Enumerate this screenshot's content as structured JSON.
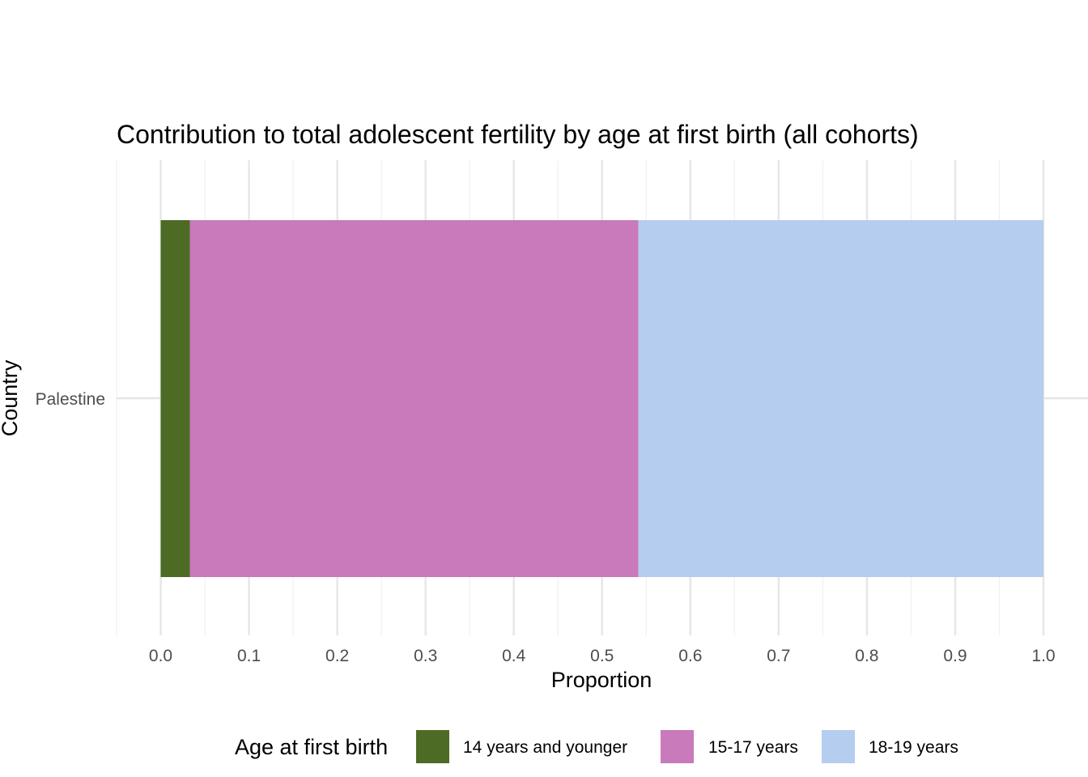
{
  "chart_data": {
    "type": "bar",
    "orientation": "horizontal",
    "stacked": true,
    "title": "Contribution to total adolescent fertility by age at first birth (all cohorts)",
    "xlabel": "Proportion",
    "ylabel": "Country",
    "categories": [
      "Palestine"
    ],
    "xlim": [
      -0.05,
      1.0
    ],
    "x_ticks": [
      "0.0",
      "0.1",
      "0.2",
      "0.3",
      "0.4",
      "0.5",
      "0.6",
      "0.7",
      "0.8",
      "0.9",
      "1.0"
    ],
    "x_tick_values": [
      0.0,
      0.1,
      0.2,
      0.3,
      0.4,
      0.5,
      0.6,
      0.7,
      0.8,
      0.9,
      1.0
    ],
    "grid": true,
    "legend_position": "bottom",
    "legend_title": "Age at first birth",
    "series": [
      {
        "name": "14 years and younger",
        "values": [
          0.033
        ],
        "color": "#4e6b25"
      },
      {
        "name": "15-17 years",
        "values": [
          0.508
        ],
        "color": "#c87aba"
      },
      {
        "name": "18-19 years",
        "values": [
          0.459
        ],
        "color": "#b5cdef"
      }
    ]
  }
}
